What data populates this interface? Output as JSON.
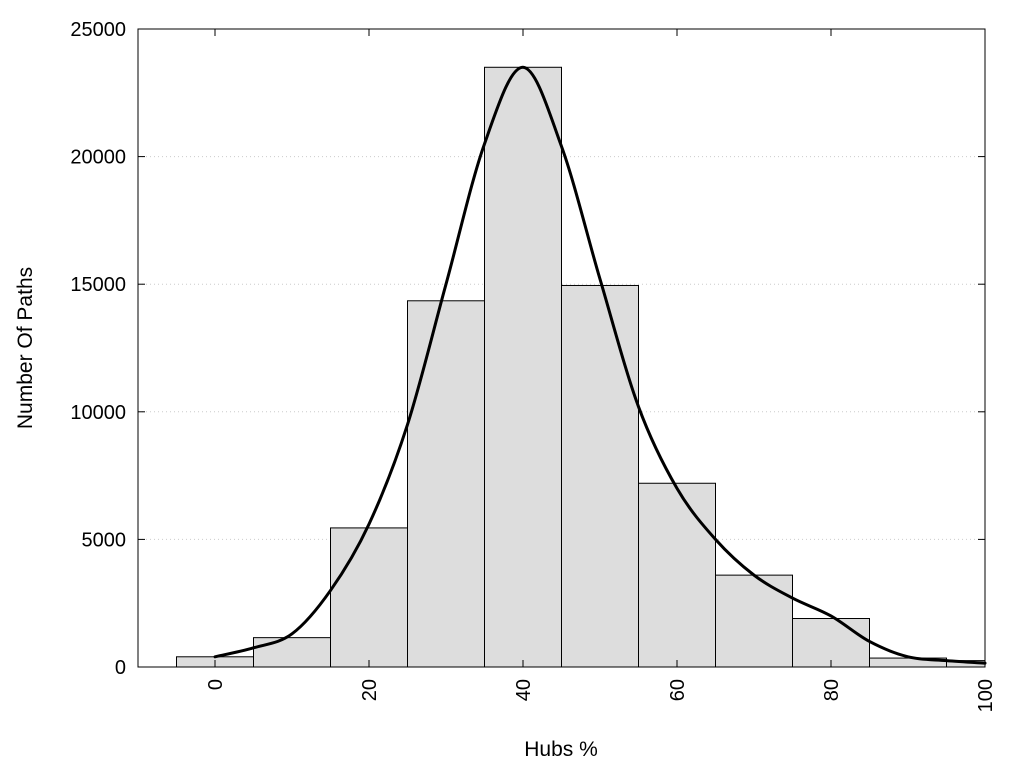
{
  "chart_data": {
    "type": "bar",
    "xlabel": "Hubs %",
    "ylabel": "Number Of Paths",
    "xlim": [
      -10,
      100
    ],
    "ylim": [
      0,
      25000
    ],
    "x_ticks": [
      0,
      20,
      40,
      60,
      80,
      100
    ],
    "y_ticks": [
      0,
      5000,
      10000,
      15000,
      20000,
      25000
    ],
    "grid": "horizontal dotted",
    "bar_color": "#dddddd",
    "bins": [
      {
        "from": -5,
        "to": 5,
        "value": 400
      },
      {
        "from": 5,
        "to": 15,
        "value": 1150
      },
      {
        "from": 15,
        "to": 25,
        "value": 5450
      },
      {
        "from": 25,
        "to": 35,
        "value": 14350
      },
      {
        "from": 35,
        "to": 45,
        "value": 23500
      },
      {
        "from": 45,
        "to": 55,
        "value": 14950
      },
      {
        "from": 55,
        "to": 65,
        "value": 7200
      },
      {
        "from": 65,
        "to": 75,
        "value": 3600
      },
      {
        "from": 75,
        "to": 85,
        "value": 1900
      },
      {
        "from": 85,
        "to": 95,
        "value": 350
      },
      {
        "from": 95,
        "to": 100,
        "value": 250
      }
    ],
    "curve": {
      "x": [
        0,
        5,
        10,
        15,
        20,
        25,
        30,
        35,
        40,
        45,
        50,
        55,
        60,
        65,
        70,
        75,
        80,
        85,
        90,
        95,
        100
      ],
      "y": [
        400,
        750,
        1300,
        3000,
        5600,
        9500,
        15000,
        20500,
        23500,
        20400,
        15200,
        10200,
        7000,
        5000,
        3600,
        2700,
        2000,
        1000,
        400,
        250,
        150
      ]
    }
  }
}
